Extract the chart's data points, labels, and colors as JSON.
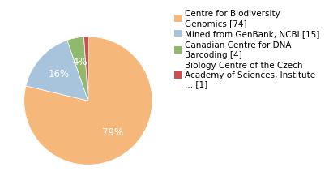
{
  "labels": [
    "Centre for Biodiversity\nGenomics [74]",
    "Mined from GenBank, NCBI [15]",
    "Canadian Centre for DNA\nBarcoding [4]",
    "Biology Centre of the Czech\nAcademy of Sciences, Institute\n... [1]"
  ],
  "values": [
    74,
    15,
    4,
    1
  ],
  "colors": [
    "#f5b87a",
    "#a8c4dc",
    "#8fba6e",
    "#cc4f4f"
  ],
  "background_color": "#ffffff",
  "pct_fontsize": 8.5,
  "legend_fontsize": 7.5
}
